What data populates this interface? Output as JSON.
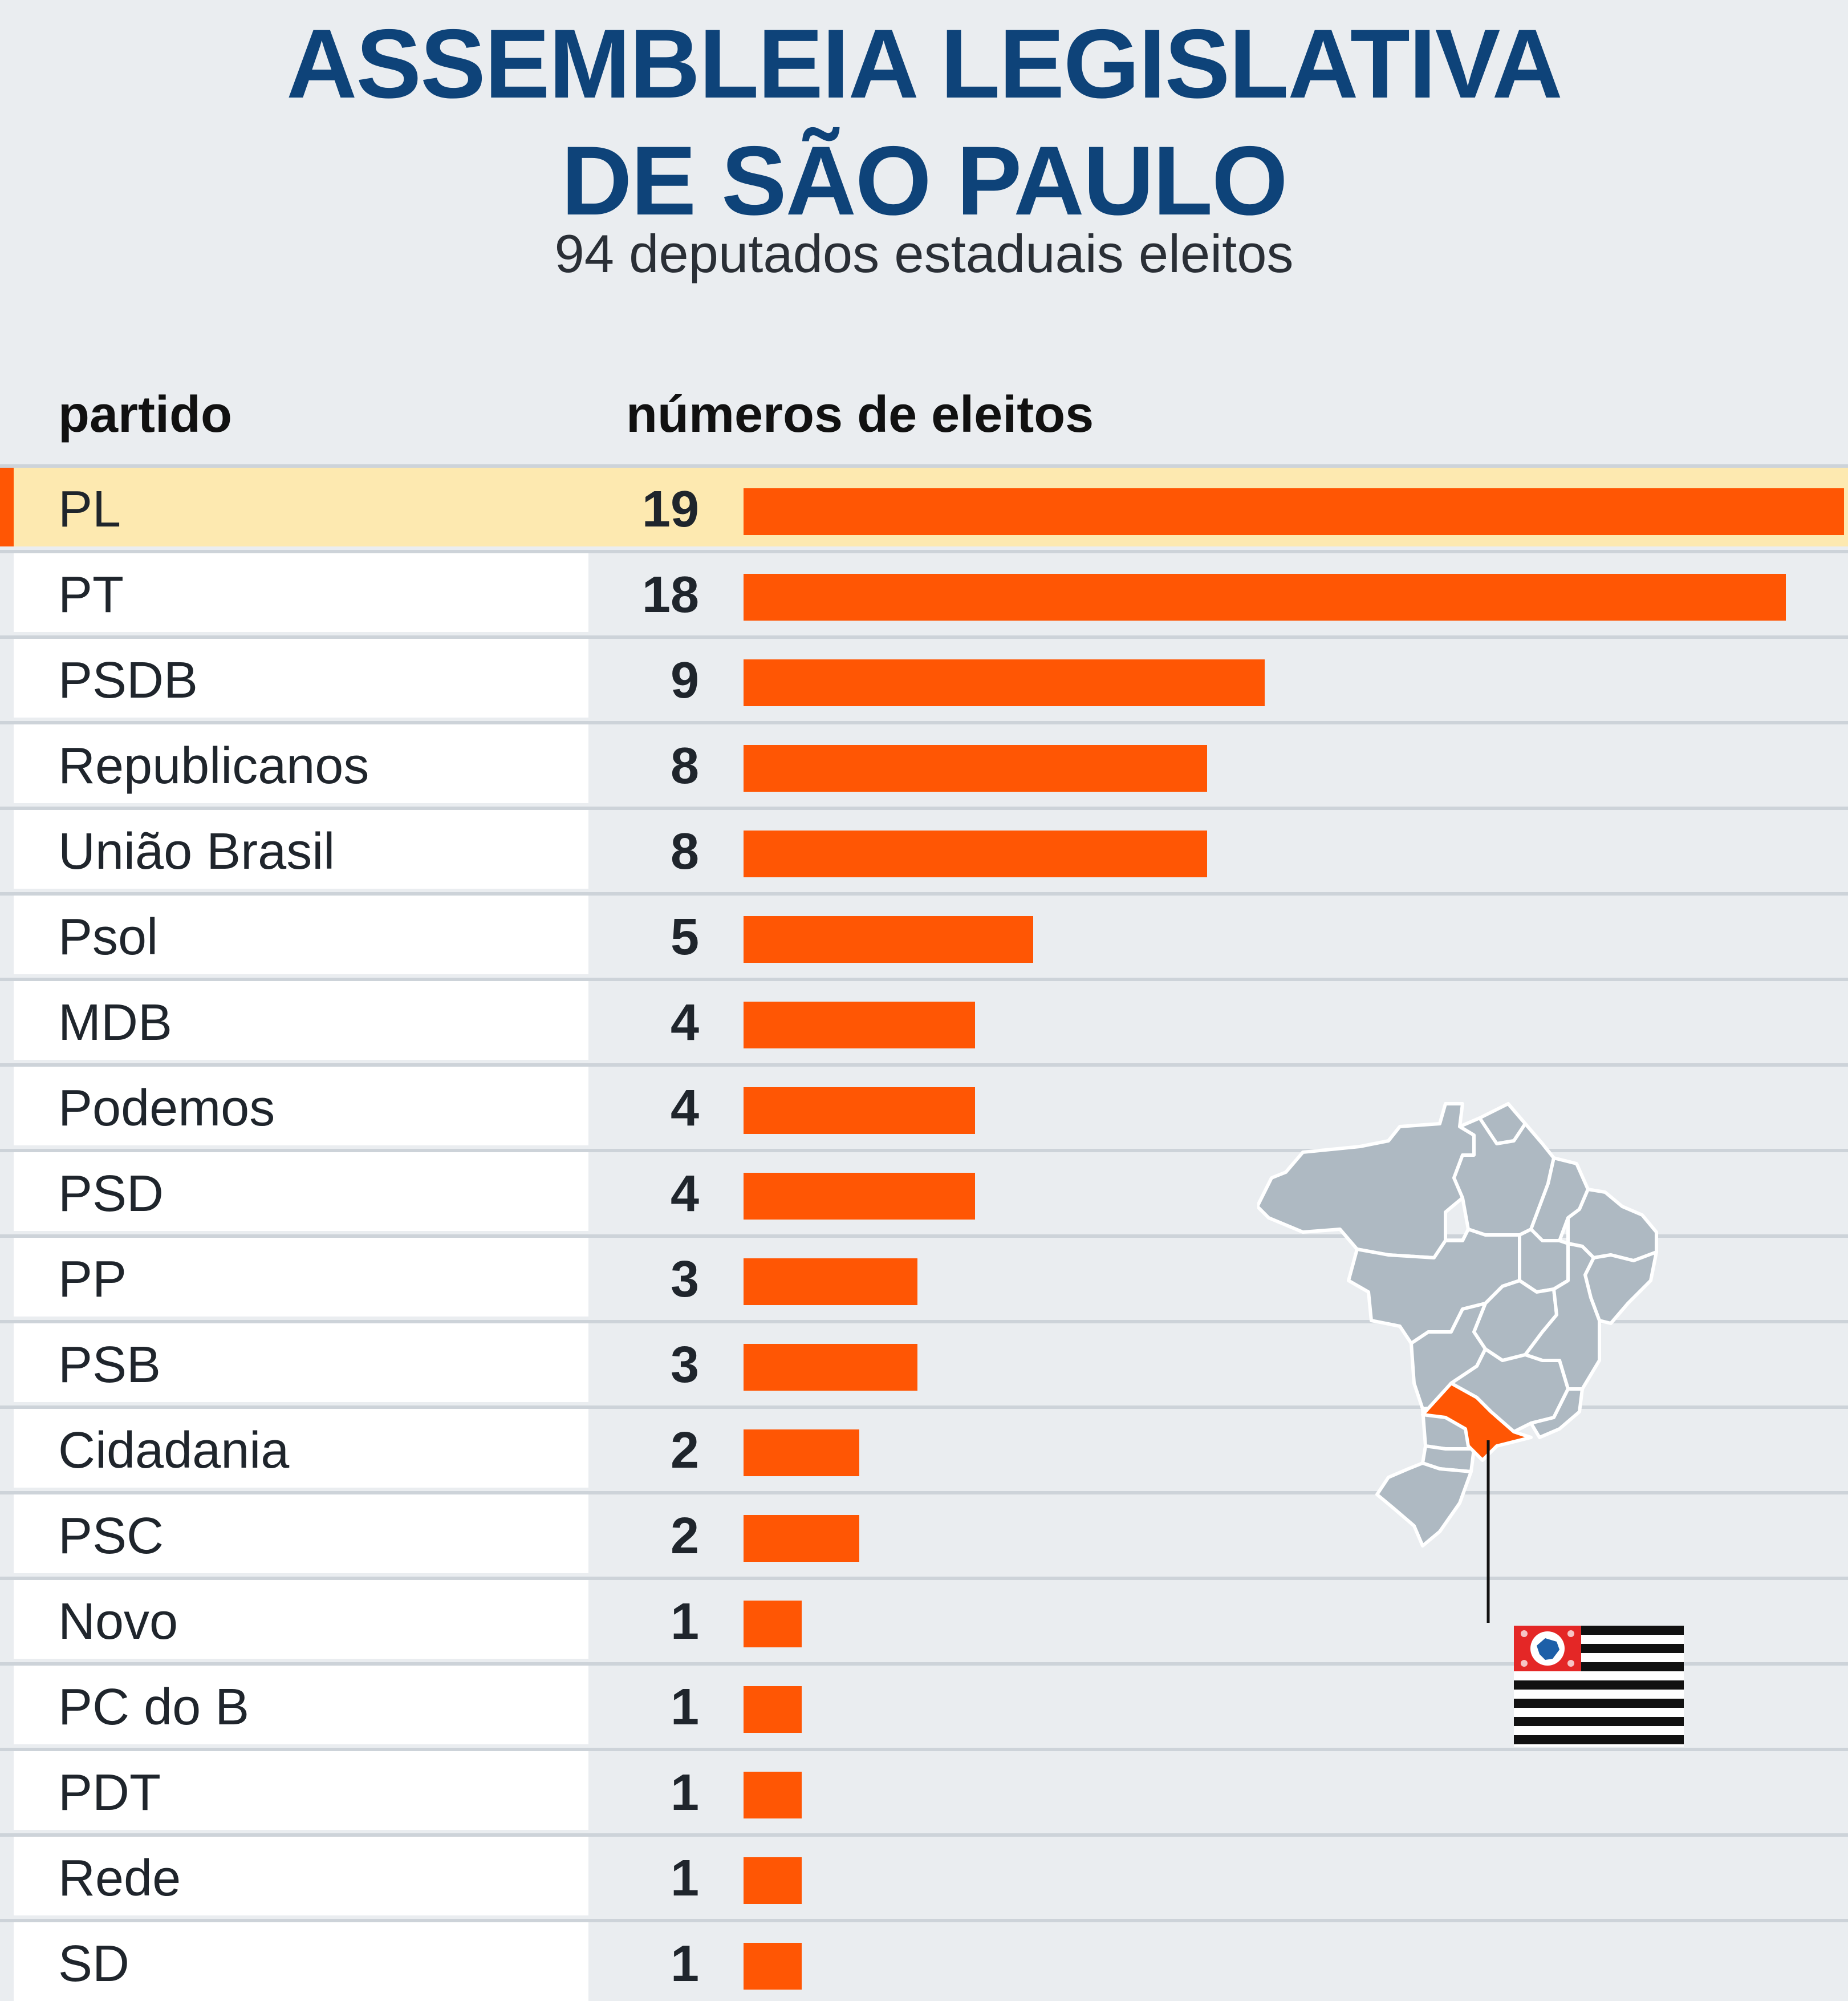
{
  "title_line1": "ASSEMBLEIA LEGISLATIVA",
  "title_line2": "DE SÃO PAULO",
  "subtitle": "94 deputados estaduais eleitos",
  "column_headers": {
    "party": "partido",
    "count": "números de eleitos"
  },
  "colors": {
    "bar": "#ff5604",
    "title": "#0e4379",
    "highlight": "#fde9b0",
    "background": "#eaedf0",
    "map_state": "#aeb9c2",
    "map_highlight": "#ff5604"
  },
  "icons": [
    "brazil-map-icon",
    "sao-paulo-flag-icon"
  ],
  "chart_data": {
    "type": "bar",
    "orientation": "horizontal",
    "title": "ASSEMBLEIA LEGISLATIVA DE SÃO PAULO",
    "subtitle": "94 deputados estaduais eleitos",
    "xlabel": "números de eleitos",
    "ylabel": "partido",
    "categories": [
      "PL",
      "PT",
      "PSDB",
      "Republicanos",
      "União Brasil",
      "Psol",
      "MDB",
      "Podemos",
      "PSD",
      "PP",
      "PSB",
      "Cidadania",
      "PSC",
      "Novo",
      "PC do B",
      "PDT",
      "Rede",
      "SD"
    ],
    "values": [
      19,
      18,
      9,
      8,
      8,
      5,
      4,
      4,
      4,
      3,
      3,
      2,
      2,
      1,
      1,
      1,
      1,
      1
    ],
    "highlighted_category": "PL",
    "xlim": [
      0,
      19
    ],
    "grid": false,
    "legend": "none"
  }
}
